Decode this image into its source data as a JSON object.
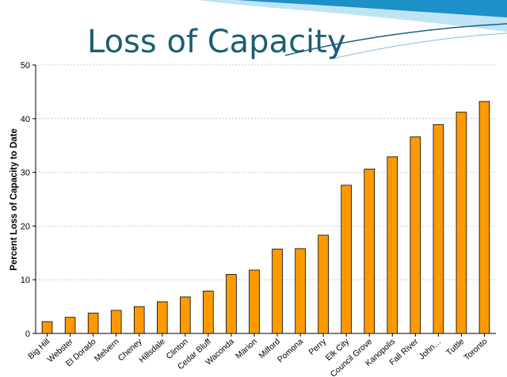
{
  "slide": {
    "title": "Loss of Capacity"
  },
  "colors": {
    "bar_fill": "#FF9900",
    "bar_stroke": "#000000",
    "title": "#1B5E73",
    "banner": "#1E90C8"
  },
  "chart_data": {
    "type": "bar",
    "title": "",
    "xlabel": "",
    "ylabel": "Percent Loss of Capacity to Date",
    "ylim": [
      0,
      50
    ],
    "yticks": [
      0,
      10,
      20,
      30,
      40,
      50
    ],
    "grid": true,
    "legend": "none",
    "categories": [
      "Big Hill",
      "Webster",
      "El Dorado",
      "Melvern",
      "Cheney",
      "Hillsdale",
      "Clinton",
      "Cedar Bluff",
      "Waconda",
      "Marion",
      "Milford",
      "Pomona",
      "Perry",
      "Elk City",
      "Council Grove",
      "Kanopolis",
      "Fall River",
      "John…",
      "Tuttle",
      "Toronto"
    ],
    "values": [
      2.2,
      3.0,
      3.8,
      4.3,
      5.0,
      5.9,
      6.8,
      7.9,
      11.0,
      11.8,
      15.7,
      15.8,
      18.3,
      27.6,
      30.6,
      32.9,
      36.6,
      38.9,
      41.2,
      43.2
    ]
  }
}
